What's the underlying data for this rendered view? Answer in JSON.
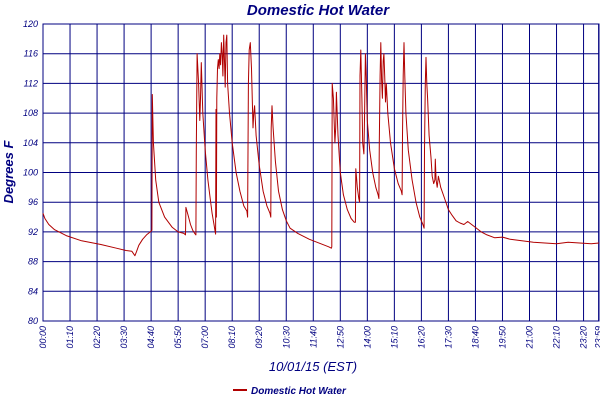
{
  "chart_data": {
    "type": "line",
    "title": "Domestic Hot Water",
    "xlabel": "10/01/15 (EST)",
    "ylabel": "Degrees F",
    "ylim": [
      80,
      120
    ],
    "yticks": [
      "80",
      "84",
      "88",
      "92",
      "96",
      "100",
      "104",
      "108",
      "112",
      "116",
      "120"
    ],
    "xlim": [
      0,
      1440
    ],
    "xticks": [
      "00:00",
      "01:10",
      "02:20",
      "03:30",
      "04:40",
      "05:50",
      "07:00",
      "08:10",
      "09:20",
      "10:30",
      "11:40",
      "12:50",
      "14:00",
      "15:10",
      "16:20",
      "17:30",
      "18:40",
      "19:50",
      "21:00",
      "22:10",
      "23:20",
      "23:59"
    ],
    "grid": true,
    "legend": "bottom-center",
    "colors": {
      "series": "#b00000",
      "text": "#000080",
      "grid": "#000080"
    },
    "series": [
      {
        "name": "Domestic Hot Water",
        "points": [
          [
            0,
            94.5
          ],
          [
            5,
            93.8
          ],
          [
            15,
            93.0
          ],
          [
            30,
            92.3
          ],
          [
            60,
            91.5
          ],
          [
            100,
            90.8
          ],
          [
            150,
            90.3
          ],
          [
            190,
            89.8
          ],
          [
            215,
            89.5
          ],
          [
            230,
            89.4
          ],
          [
            238,
            88.8
          ],
          [
            242,
            89.3
          ],
          [
            248,
            90.2
          ],
          [
            258,
            91.0
          ],
          [
            268,
            91.6
          ],
          [
            278,
            92.0
          ],
          [
            282,
            92.2
          ],
          [
            283,
            110.5
          ],
          [
            286,
            104
          ],
          [
            292,
            99
          ],
          [
            300,
            96
          ],
          [
            315,
            94
          ],
          [
            335,
            92.6
          ],
          [
            350,
            92.0
          ],
          [
            365,
            91.8
          ],
          [
            369,
            91.6
          ],
          [
            370,
            95.3
          ],
          [
            376,
            94.2
          ],
          [
            382,
            93.0
          ],
          [
            388,
            92.2
          ],
          [
            393,
            91.8
          ],
          [
            396,
            91.6
          ],
          [
            397,
            103
          ],
          [
            399,
            116
          ],
          [
            403,
            112
          ],
          [
            406,
            107
          ],
          [
            408,
            110
          ],
          [
            410,
            114.8
          ],
          [
            414,
            108
          ],
          [
            420,
            103
          ],
          [
            427,
            99
          ],
          [
            433,
            96.5
          ],
          [
            438,
            94.5
          ],
          [
            443,
            93
          ],
          [
            446,
            92
          ],
          [
            447,
            91.7
          ],
          [
            448,
            108.5
          ],
          [
            449,
            94
          ],
          [
            450,
            110
          ],
          [
            452,
            114
          ],
          [
            454,
            115.2
          ],
          [
            456,
            114
          ],
          [
            458,
            116
          ],
          [
            460,
            114.5
          ],
          [
            462,
            117.5
          ],
          [
            464,
            116
          ],
          [
            466,
            113
          ],
          [
            468,
            118.5
          ],
          [
            470,
            115
          ],
          [
            472,
            111.5
          ],
          [
            474,
            117.5
          ],
          [
            476,
            118.5
          ],
          [
            478,
            112
          ],
          [
            483,
            108
          ],
          [
            490,
            104
          ],
          [
            500,
            100
          ],
          [
            510,
            97.5
          ],
          [
            520,
            95.5
          ],
          [
            528,
            94.8
          ],
          [
            530,
            94
          ],
          [
            532,
            112
          ],
          [
            534,
            116.5
          ],
          [
            537,
            117.5
          ],
          [
            540,
            114
          ],
          [
            544,
            106
          ],
          [
            546,
            108
          ],
          [
            548,
            109
          ],
          [
            552,
            105
          ],
          [
            560,
            101
          ],
          [
            570,
            97.5
          ],
          [
            580,
            95.5
          ],
          [
            588,
            94.5
          ],
          [
            590,
            94
          ],
          [
            591,
            106
          ],
          [
            593,
            109
          ],
          [
            596,
            106
          ],
          [
            602,
            101.5
          ],
          [
            610,
            97.5
          ],
          [
            620,
            95
          ],
          [
            630,
            93.5
          ],
          [
            640,
            92.5
          ],
          [
            660,
            91.8
          ],
          [
            690,
            91.0
          ],
          [
            720,
            90.4
          ],
          [
            740,
            90.0
          ],
          [
            747,
            89.8
          ],
          [
            748,
            90
          ],
          [
            749,
            112
          ],
          [
            752,
            110
          ],
          [
            756,
            104
          ],
          [
            758,
            106
          ],
          [
            760,
            110.8
          ],
          [
            764,
            105
          ],
          [
            770,
            100
          ],
          [
            778,
            97
          ],
          [
            788,
            95
          ],
          [
            798,
            93.8
          ],
          [
            806,
            93.3
          ],
          [
            809,
            93.3
          ],
          [
            810,
            100.5
          ],
          [
            814,
            98
          ],
          [
            818,
            96.5
          ],
          [
            820,
            96
          ],
          [
            821,
            113
          ],
          [
            823,
            116.5
          ],
          [
            826,
            110
          ],
          [
            828,
            104
          ],
          [
            831,
            102.5
          ],
          [
            833,
            108
          ],
          [
            835,
            116
          ],
          [
            837,
            113
          ],
          [
            840,
            107
          ],
          [
            846,
            103
          ],
          [
            854,
            100
          ],
          [
            862,
            98
          ],
          [
            868,
            97
          ],
          [
            870,
            96.5
          ],
          [
            871,
            104
          ],
          [
            873,
            113
          ],
          [
            875,
            117.5
          ],
          [
            877,
            112.5
          ],
          [
            879,
            110
          ],
          [
            881,
            115
          ],
          [
            883,
            116
          ],
          [
            885,
            113
          ],
          [
            887,
            109.5
          ],
          [
            889,
            112
          ],
          [
            893,
            108
          ],
          [
            900,
            104
          ],
          [
            910,
            100.5
          ],
          [
            920,
            98.5
          ],
          [
            928,
            97.5
          ],
          [
            930,
            97
          ],
          [
            931,
            105
          ],
          [
            933,
            113
          ],
          [
            935,
            117.5
          ],
          [
            937,
            113
          ],
          [
            940,
            108
          ],
          [
            946,
            103
          ],
          [
            956,
            99
          ],
          [
            966,
            96
          ],
          [
            976,
            94
          ],
          [
            984,
            93
          ],
          [
            987,
            92.5
          ],
          [
            988,
            103
          ],
          [
            990,
            112
          ],
          [
            992,
            115.5
          ],
          [
            994,
            112
          ],
          [
            996,
            110
          ],
          [
            1000,
            105
          ],
          [
            1005,
            102
          ],
          [
            1008,
            99.5
          ],
          [
            1012,
            98.5
          ],
          [
            1015,
            99
          ],
          [
            1016,
            101.8
          ],
          [
            1018,
            99
          ],
          [
            1021,
            98
          ],
          [
            1024,
            99.5
          ],
          [
            1030,
            98
          ],
          [
            1040,
            96.5
          ],
          [
            1050,
            95
          ],
          [
            1060,
            94.2
          ],
          [
            1070,
            93.5
          ],
          [
            1080,
            93.2
          ],
          [
            1090,
            93.0
          ],
          [
            1100,
            93.4
          ],
          [
            1110,
            93.0
          ],
          [
            1120,
            92.6
          ],
          [
            1135,
            92.0
          ],
          [
            1150,
            91.6
          ],
          [
            1170,
            91.2
          ],
          [
            1190,
            91.3
          ],
          [
            1210,
            91.0
          ],
          [
            1240,
            90.8
          ],
          [
            1270,
            90.6
          ],
          [
            1300,
            90.5
          ],
          [
            1330,
            90.4
          ],
          [
            1360,
            90.6
          ],
          [
            1390,
            90.5
          ],
          [
            1420,
            90.4
          ],
          [
            1440,
            90.5
          ]
        ]
      }
    ]
  }
}
